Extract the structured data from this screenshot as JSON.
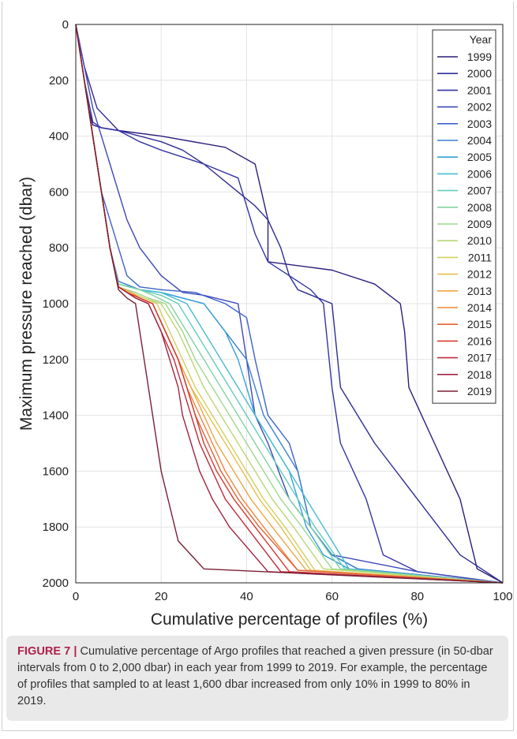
{
  "caption": {
    "label": "FIGURE 7 |",
    "text": " Cumulative percentage of Argo profiles that reached a given pressure (in 50-dbar intervals from 0 to 2,000 dbar) in each year from 1999 to 2019. For example, the percentage of profiles that sampled to at least 1,600 dbar increased from only 10% in 1999 to 80% in 2019."
  },
  "chart_data": {
    "type": "line",
    "xlabel": "Cumulative percentage of profiles (%)",
    "ylabel": "Maximum pressure reached (dbar)",
    "xlim": [
      0,
      100
    ],
    "ylim": [
      0,
      2000
    ],
    "y_reversed": true,
    "xticks": [
      0,
      20,
      40,
      60,
      80,
      100
    ],
    "yticks": [
      0,
      200,
      400,
      600,
      800,
      1000,
      1200,
      1400,
      1600,
      1800,
      2000
    ],
    "grid": true,
    "legend": {
      "title": "Year",
      "placement": "top-right"
    },
    "colors": [
      "#2a1f7c",
      "#2e2c94",
      "#3434a4",
      "#3d48b8",
      "#3e62c8",
      "#3a7fd3",
      "#35a0d8",
      "#47bcd0",
      "#62ccba",
      "#80d3a3",
      "#9ed78d",
      "#b9d775",
      "#d2cf5e",
      "#e7c04c",
      "#f0a542",
      "#ee853a",
      "#e26035",
      "#d43b30",
      "#c22a3b",
      "#9e2442",
      "#7a1f34"
    ],
    "series": [
      {
        "name": "1999",
        "x": [
          0,
          1,
          2,
          3,
          4,
          6,
          10,
          20,
          35,
          42,
          45,
          45,
          60,
          70,
          76,
          77,
          78,
          84,
          90,
          94,
          100
        ],
        "y": [
          0,
          100,
          200,
          300,
          360,
          370,
          380,
          400,
          440,
          500,
          700,
          850,
          880,
          930,
          1000,
          1100,
          1300,
          1500,
          1700,
          1950,
          2000
        ]
      },
      {
        "name": "2000",
        "x": [
          0,
          2,
          5,
          10,
          20,
          25,
          30,
          38,
          42,
          45,
          48,
          50,
          52,
          60,
          62,
          70,
          80,
          90,
          100
        ],
        "y": [
          0,
          150,
          300,
          380,
          420,
          450,
          500,
          600,
          650,
          700,
          800,
          900,
          950,
          1000,
          1300,
          1500,
          1700,
          1900,
          2000
        ]
      },
      {
        "name": "2001",
        "x": [
          0,
          1,
          2,
          4,
          6,
          10,
          15,
          20,
          30,
          38,
          40,
          42,
          45,
          55,
          58,
          60,
          62,
          68,
          72,
          80,
          100
        ],
        "y": [
          0,
          100,
          200,
          350,
          370,
          380,
          420,
          450,
          500,
          550,
          650,
          750,
          850,
          950,
          1000,
          1300,
          1500,
          1700,
          1900,
          1960,
          2000
        ]
      },
      {
        "name": "2002",
        "x": [
          0,
          2,
          4,
          6,
          8,
          10,
          12,
          15,
          20,
          25,
          30,
          38,
          40,
          42,
          45,
          50,
          60,
          80,
          100
        ],
        "y": [
          0,
          150,
          300,
          400,
          500,
          600,
          700,
          800,
          900,
          960,
          970,
          1000,
          1200,
          1400,
          1500,
          1700,
          1900,
          1960,
          2000
        ]
      },
      {
        "name": "2003",
        "x": [
          0,
          2,
          4,
          6,
          8,
          10,
          12,
          15,
          20,
          28,
          35,
          40,
          42,
          45,
          50,
          52,
          55,
          60,
          66,
          100
        ],
        "y": [
          0,
          200,
          400,
          600,
          700,
          800,
          900,
          940,
          950,
          960,
          1000,
          1050,
          1200,
          1400,
          1500,
          1600,
          1800,
          1900,
          1950,
          2000
        ]
      },
      {
        "name": "2004",
        "x": [
          0,
          2,
          4,
          6,
          8,
          10,
          15,
          20,
          30,
          35,
          40,
          44,
          48,
          52,
          55,
          60,
          66,
          100
        ],
        "y": [
          0,
          200,
          400,
          600,
          800,
          920,
          950,
          960,
          1000,
          1100,
          1200,
          1400,
          1500,
          1600,
          1800,
          1900,
          1950,
          2000
        ]
      },
      {
        "name": "2005",
        "x": [
          0,
          2,
          4,
          6,
          8,
          10,
          15,
          20,
          30,
          35,
          38,
          42,
          46,
          50,
          54,
          58,
          64,
          100
        ],
        "y": [
          0,
          200,
          400,
          600,
          800,
          930,
          950,
          960,
          1000,
          1100,
          1200,
          1400,
          1500,
          1600,
          1800,
          1900,
          1950,
          2000
        ]
      },
      {
        "name": "2006",
        "x": [
          0,
          2,
          4,
          6,
          8,
          10,
          15,
          20,
          26,
          30,
          34,
          38,
          42,
          46,
          50,
          54,
          58,
          64,
          100
        ],
        "y": [
          0,
          200,
          400,
          600,
          800,
          930,
          950,
          960,
          1000,
          1100,
          1200,
          1300,
          1400,
          1500,
          1600,
          1700,
          1800,
          1950,
          2000
        ]
      },
      {
        "name": "2007",
        "x": [
          0,
          2,
          4,
          6,
          8,
          10,
          15,
          20,
          24,
          28,
          32,
          36,
          40,
          44,
          48,
          52,
          56,
          63,
          100
        ],
        "y": [
          0,
          200,
          400,
          600,
          800,
          930,
          950,
          970,
          1000,
          1100,
          1200,
          1300,
          1400,
          1500,
          1600,
          1700,
          1800,
          1950,
          2000
        ]
      },
      {
        "name": "2008",
        "x": [
          0,
          2,
          4,
          6,
          8,
          10,
          15,
          18,
          22,
          26,
          30,
          34,
          38,
          42,
          46,
          50,
          55,
          62,
          100
        ],
        "y": [
          0,
          200,
          400,
          600,
          800,
          930,
          950,
          970,
          1000,
          1100,
          1200,
          1300,
          1400,
          1500,
          1600,
          1700,
          1800,
          1950,
          2000
        ]
      },
      {
        "name": "2009",
        "x": [
          0,
          2,
          4,
          6,
          8,
          10,
          14,
          17,
          21,
          25,
          28,
          32,
          36,
          40,
          44,
          48,
          53,
          60,
          100
        ],
        "y": [
          0,
          200,
          400,
          600,
          800,
          940,
          960,
          980,
          1000,
          1100,
          1200,
          1300,
          1400,
          1500,
          1600,
          1700,
          1800,
          1950,
          2000
        ]
      },
      {
        "name": "2010",
        "x": [
          0,
          2,
          4,
          6,
          8,
          10,
          13,
          16,
          20,
          24,
          27,
          30,
          34,
          38,
          42,
          46,
          51,
          58,
          100
        ],
        "y": [
          0,
          200,
          400,
          600,
          800,
          940,
          960,
          980,
          1000,
          1100,
          1200,
          1300,
          1400,
          1500,
          1600,
          1700,
          1800,
          1950,
          2000
        ]
      },
      {
        "name": "2011",
        "x": [
          0,
          2,
          4,
          6,
          8,
          10,
          13,
          16,
          19,
          22,
          25,
          28,
          32,
          36,
          40,
          44,
          49,
          56,
          100
        ],
        "y": [
          0,
          200,
          400,
          600,
          800,
          940,
          960,
          980,
          1000,
          1100,
          1200,
          1300,
          1400,
          1500,
          1600,
          1700,
          1800,
          1955,
          2000
        ]
      },
      {
        "name": "2012",
        "x": [
          0,
          2,
          4,
          6,
          8,
          10,
          13,
          15,
          18,
          21,
          24,
          27,
          31,
          35,
          39,
          43,
          48,
          55,
          100
        ],
        "y": [
          0,
          200,
          400,
          600,
          800,
          940,
          960,
          980,
          1000,
          1100,
          1200,
          1300,
          1400,
          1500,
          1600,
          1700,
          1800,
          1955,
          2000
        ]
      },
      {
        "name": "2013",
        "x": [
          0,
          2,
          4,
          6,
          8,
          10,
          13,
          15,
          18,
          21,
          24,
          27,
          30,
          33,
          37,
          41,
          46,
          54,
          100
        ],
        "y": [
          0,
          200,
          400,
          600,
          800,
          940,
          960,
          980,
          1000,
          1100,
          1200,
          1300,
          1400,
          1500,
          1600,
          1700,
          1800,
          1955,
          2000
        ]
      },
      {
        "name": "2014",
        "x": [
          0,
          2,
          4,
          6,
          8,
          10,
          12,
          15,
          18,
          21,
          24,
          26,
          29,
          32,
          35,
          39,
          44,
          52,
          100
        ],
        "y": [
          0,
          200,
          400,
          600,
          800,
          940,
          960,
          980,
          1000,
          1100,
          1200,
          1300,
          1400,
          1500,
          1600,
          1700,
          1800,
          1955,
          2000
        ]
      },
      {
        "name": "2015",
        "x": [
          0,
          2,
          4,
          6,
          8,
          10,
          12,
          15,
          18,
          21,
          24,
          26,
          28,
          31,
          34,
          38,
          43,
          52,
          100
        ],
        "y": [
          0,
          200,
          400,
          600,
          800,
          940,
          960,
          980,
          1000,
          1100,
          1200,
          1300,
          1400,
          1500,
          1600,
          1700,
          1800,
          1955,
          2000
        ]
      },
      {
        "name": "2016",
        "x": [
          0,
          2,
          4,
          6,
          8,
          10,
          12,
          15,
          18,
          21,
          24,
          26,
          28,
          30,
          33,
          37,
          42,
          50,
          100
        ],
        "y": [
          0,
          200,
          400,
          600,
          800,
          940,
          960,
          980,
          1000,
          1100,
          1200,
          1300,
          1400,
          1500,
          1600,
          1700,
          1800,
          1960,
          2000
        ]
      },
      {
        "name": "2017",
        "x": [
          0,
          2,
          4,
          6,
          8,
          10,
          12,
          14,
          17,
          20,
          23,
          25,
          27,
          29,
          32,
          35,
          40,
          48,
          100
        ],
        "y": [
          0,
          200,
          400,
          600,
          800,
          940,
          960,
          980,
          1000,
          1100,
          1200,
          1300,
          1400,
          1500,
          1600,
          1700,
          1800,
          1960,
          2000
        ]
      },
      {
        "name": "2018",
        "x": [
          0,
          2,
          4,
          6,
          8,
          10,
          12,
          14,
          17,
          20,
          22,
          24,
          25,
          27,
          29,
          32,
          36,
          45,
          100
        ],
        "y": [
          0,
          200,
          400,
          600,
          800,
          940,
          960,
          980,
          1000,
          1100,
          1200,
          1300,
          1400,
          1500,
          1600,
          1700,
          1800,
          1960,
          2000
        ]
      },
      {
        "name": "2019",
        "x": [
          0,
          2,
          4,
          6,
          8,
          10,
          12,
          14,
          15,
          16,
          17,
          18,
          19,
          20,
          24,
          30,
          100
        ],
        "y": [
          0,
          200,
          400,
          600,
          800,
          950,
          980,
          1000,
          1100,
          1200,
          1300,
          1400,
          1500,
          1600,
          1850,
          1950,
          2000
        ]
      }
    ]
  }
}
